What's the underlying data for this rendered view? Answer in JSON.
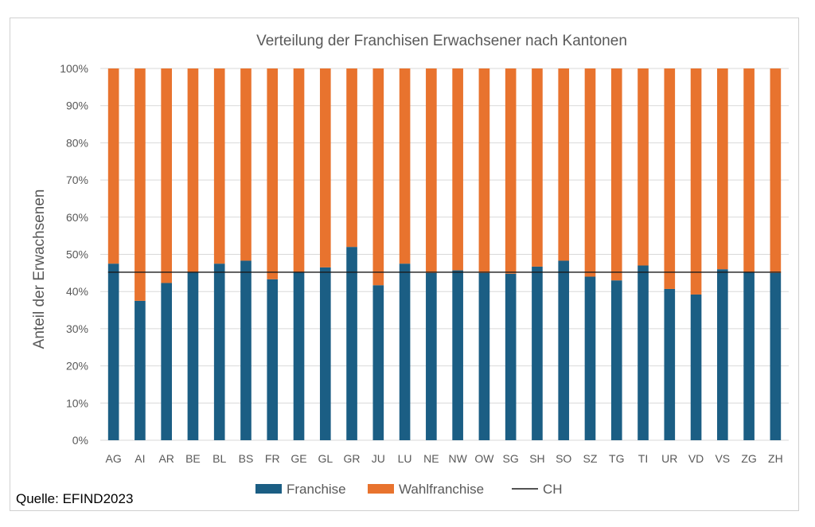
{
  "source_note": "Quelle: EFIND2023",
  "colors": {
    "franchise": "#1b5e84",
    "wahlfranchise": "#e8732e",
    "ch_line": "#1a1a1a",
    "grid": "#d9d9d9",
    "text": "#595959"
  },
  "chart_data": {
    "type": "bar",
    "stacked": true,
    "title": "Verteilung der Franchisen Erwachsener nach Kantonen",
    "xlabel": "",
    "ylabel": "Anteil der Erwachsenen",
    "ylim": [
      0,
      100
    ],
    "yticks": [
      "0%",
      "10%",
      "20%",
      "30%",
      "40%",
      "50%",
      "60%",
      "70%",
      "80%",
      "90%",
      "100%"
    ],
    "categories": [
      "AG",
      "AI",
      "AR",
      "BE",
      "BL",
      "BS",
      "FR",
      "GE",
      "GL",
      "GR",
      "JU",
      "LU",
      "NE",
      "NW",
      "OW",
      "SG",
      "SH",
      "SO",
      "SZ",
      "TG",
      "TI",
      "UR",
      "VD",
      "VS",
      "ZG",
      "ZH"
    ],
    "series": [
      {
        "name": "Franchise",
        "values": [
          47.5,
          37.5,
          42.3,
          45.2,
          47.5,
          48.3,
          43.3,
          45.2,
          46.5,
          52.0,
          41.7,
          47.5,
          45.0,
          45.7,
          45.0,
          44.8,
          46.7,
          48.3,
          44.0,
          43.0,
          47.0,
          40.7,
          39.2,
          46.0,
          45.2,
          45.0
        ]
      },
      {
        "name": "Wahlfranchise",
        "values": [
          52.5,
          62.5,
          57.7,
          54.8,
          52.5,
          51.7,
          56.7,
          54.8,
          53.5,
          48.0,
          58.3,
          52.5,
          55.0,
          54.3,
          55.0,
          55.2,
          53.3,
          51.7,
          56.0,
          57.0,
          53.0,
          59.3,
          60.8,
          54.0,
          54.8,
          55.0
        ]
      }
    ],
    "reference_line": {
      "name": "CH",
      "value": 45.2
    },
    "legend": {
      "position": "bottom",
      "entries": [
        "Franchise",
        "Wahlfranchise",
        "CH"
      ]
    },
    "grid": true
  }
}
